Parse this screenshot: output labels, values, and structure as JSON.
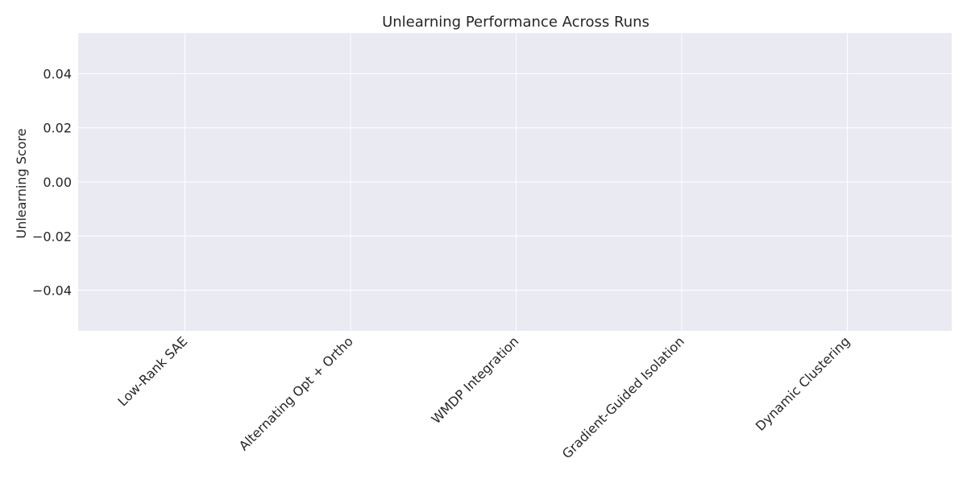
{
  "chart_data": {
    "type": "bar",
    "title": "Unlearning Performance Across Runs",
    "xlabel": "",
    "ylabel": "Unlearning Score",
    "categories": [
      "Low-Rank SAE",
      "Alternating Opt + Ortho",
      "WMDP Integration",
      "Gradient-Guided Isolation",
      "Dynamic Clustering"
    ],
    "values": [
      0,
      0,
      0,
      0,
      0
    ],
    "ylim": [
      -0.055,
      0.055
    ],
    "yticks": [
      -0.04,
      -0.02,
      0.0,
      0.02,
      0.04
    ],
    "ytick_labels": [
      "−0.04",
      "−0.02",
      "0.00",
      "0.02",
      "0.04"
    ],
    "grid": true,
    "background": "#eaeaf2",
    "grid_color": "#ffffff"
  }
}
